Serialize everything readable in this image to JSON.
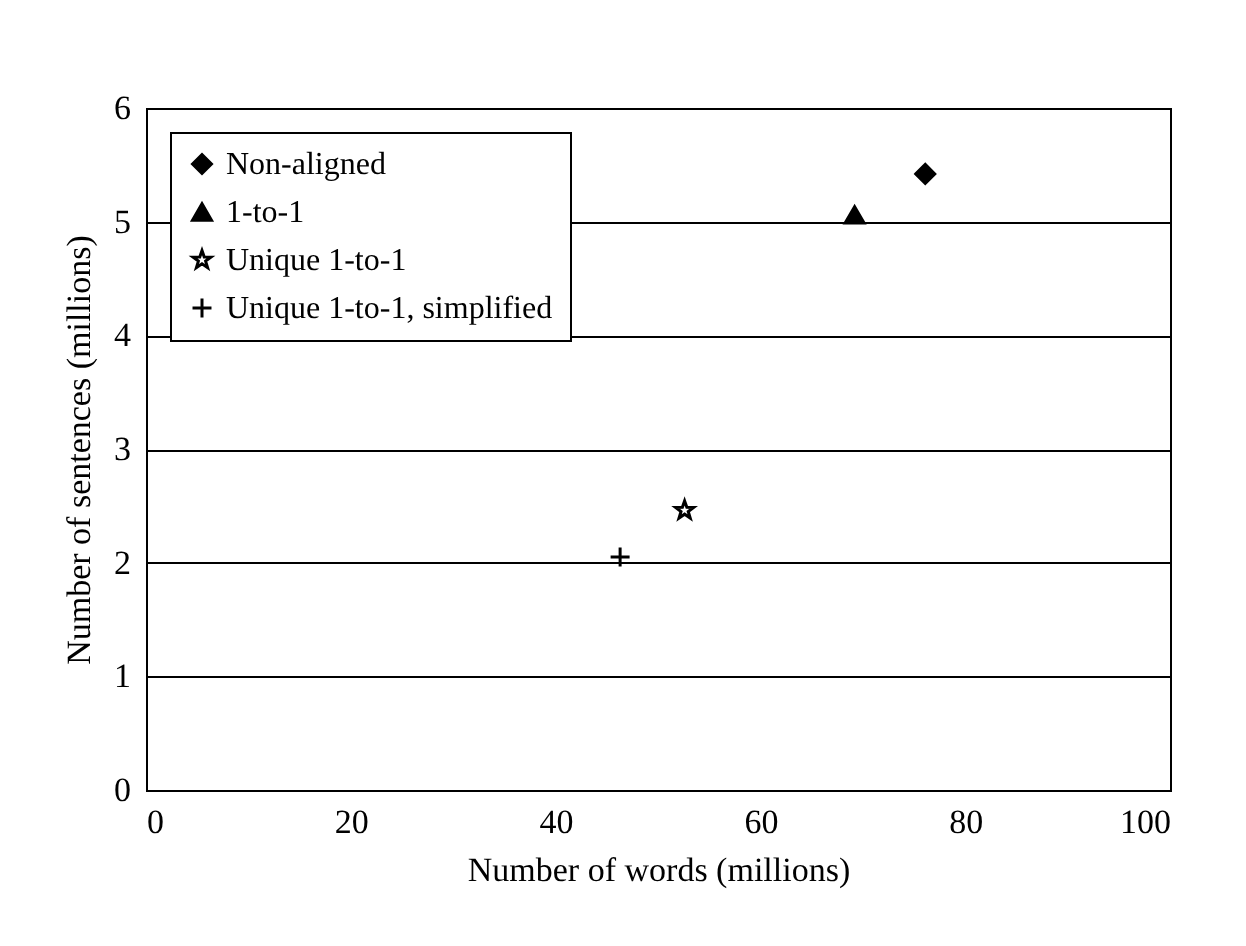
{
  "chart_data": {
    "type": "scatter",
    "xlabel": "Number of words (millions)",
    "ylabel": "Number of sentences (millions)",
    "xlim": [
      0,
      100
    ],
    "xticks": [
      0,
      20,
      40,
      60,
      80,
      100
    ],
    "ylim": [
      0,
      6
    ],
    "yticks": [
      0,
      1,
      2,
      3,
      4,
      5,
      6
    ],
    "grid": "y",
    "legend": "top left",
    "series": [
      {
        "name": "Non-aligned",
        "color": "#000000",
        "marker": "diamond",
        "x": [
          76.1
        ],
        "values": [
          5.42
        ]
      },
      {
        "name": "1-to-1",
        "color": "#000000",
        "marker": "triangle",
        "x": [
          69.2
        ],
        "values": [
          5.06
        ]
      },
      {
        "name": "Unique 1-to-1",
        "color": "#000000",
        "marker": "star",
        "x": [
          52.6
        ],
        "values": [
          2.46
        ]
      },
      {
        "name": "Unique 1-to-1, simplified",
        "color": "#000000",
        "marker": "cross",
        "x": [
          46.3
        ],
        "values": [
          2.05
        ]
      }
    ]
  }
}
